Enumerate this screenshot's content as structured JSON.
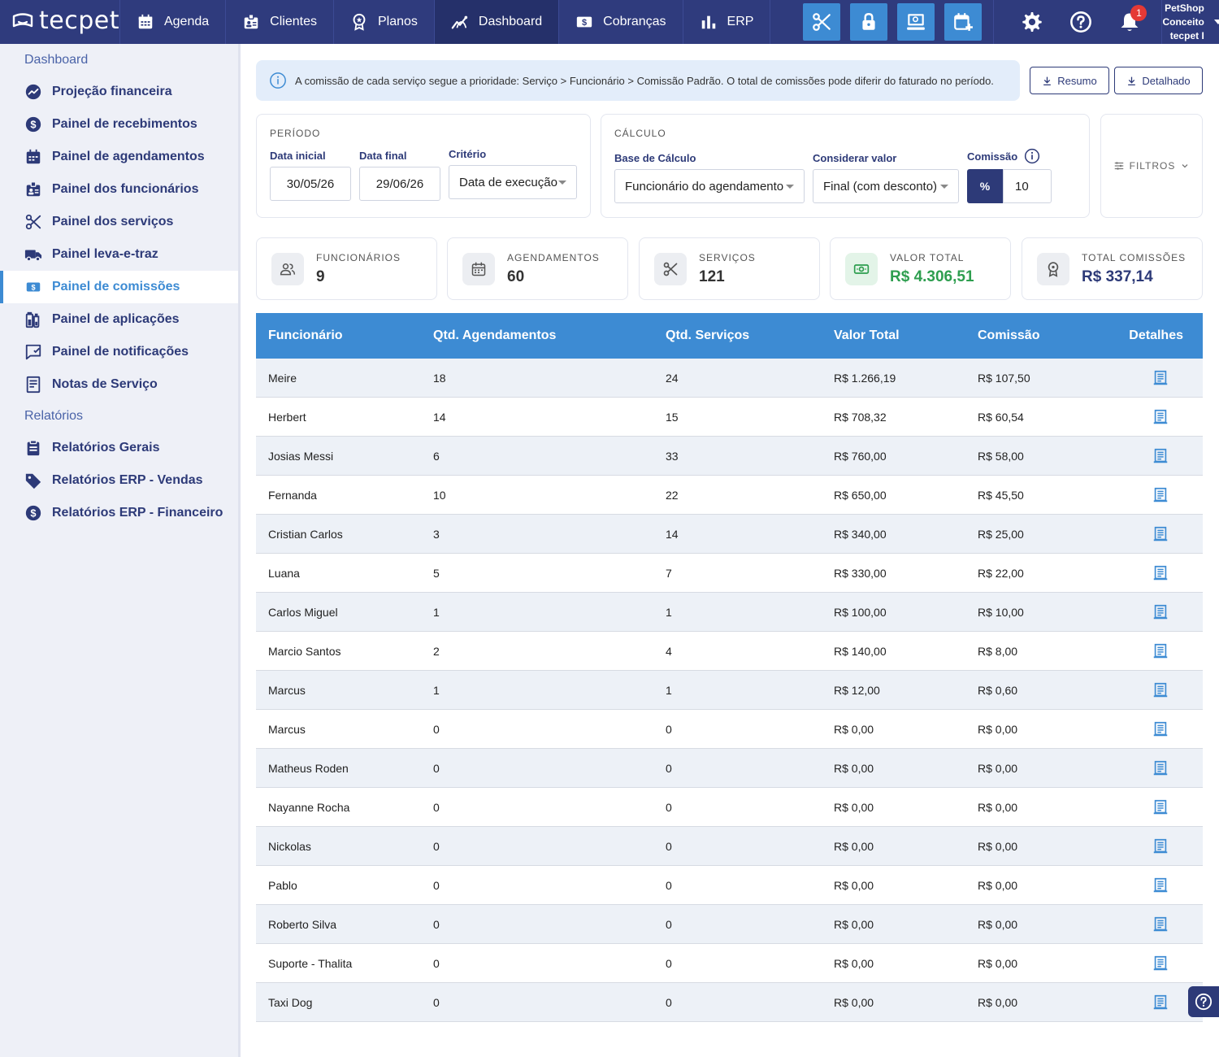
{
  "app": {
    "brand": "tecpet"
  },
  "topnav": {
    "items": [
      {
        "label": "Agenda",
        "icon": "calendar-icon"
      },
      {
        "label": "Clientes",
        "icon": "clients-icon"
      },
      {
        "label": "Planos",
        "icon": "award-icon"
      },
      {
        "label": "Dashboard",
        "icon": "chart-line-icon"
      },
      {
        "label": "Cobranças",
        "icon": "dollar-bill-icon"
      },
      {
        "label": "ERP",
        "icon": "bar-chart-icon"
      }
    ],
    "quick_actions": [
      "scissors-icon",
      "lock-icon",
      "pos-icon",
      "calendar-add-icon"
    ],
    "notification_count": "1",
    "account": {
      "name": "PetShop Conceito",
      "user": "tecpet I"
    }
  },
  "sidebar": {
    "sections": [
      {
        "title": "Dashboard",
        "items": [
          {
            "label": "Projeção financeira",
            "icon": "trend-icon"
          },
          {
            "label": "Painel de recebimentos",
            "icon": "dollar-circle-icon"
          },
          {
            "label": "Painel de agendamentos",
            "icon": "calendar-icon"
          },
          {
            "label": "Painel dos funcionários",
            "icon": "badge-icon"
          },
          {
            "label": "Painel dos serviços",
            "icon": "scissors-icon"
          },
          {
            "label": "Painel leva-e-traz",
            "icon": "truck-icon"
          },
          {
            "label": "Painel de comissões",
            "icon": "money-icon",
            "active": true
          },
          {
            "label": "Painel de aplicações",
            "icon": "flask-icon"
          },
          {
            "label": "Painel de notificações",
            "icon": "message-icon"
          },
          {
            "label": "Notas de Serviço",
            "icon": "receipt-icon"
          }
        ]
      },
      {
        "title": "Relatórios",
        "items": [
          {
            "label": "Relatórios Gerais",
            "icon": "clipboard-icon"
          },
          {
            "label": "Relatórios ERP - Vendas",
            "icon": "tag-icon"
          },
          {
            "label": "Relatórios ERP - Financeiro",
            "icon": "dollar-circle-icon"
          }
        ]
      }
    ]
  },
  "info_banner": "A comissão de cada serviço segue a prioridade: Serviço > Funcionário > Comissão Padrão. O total de comissões pode diferir do faturado no período.",
  "buttons": {
    "resumo": "Resumo",
    "detalhado": "Detalhado"
  },
  "periodo": {
    "title": "PERÍODO",
    "data_inicial_label": "Data inicial",
    "data_inicial": "30/05/26",
    "data_final_label": "Data final",
    "data_final": "29/06/26",
    "criterio_label": "Critério",
    "criterio": "Data de execução"
  },
  "calculo": {
    "title": "CÁLCULO",
    "base_label": "Base de Cálculo",
    "base": "Funcionário do agendamento",
    "considerar_label": "Considerar valor",
    "considerar": "Final (com desconto)",
    "comissao_label": "Comissão",
    "comissao_tipo": "%",
    "comissao_valor": "10"
  },
  "filtros_label": "FILTROS",
  "stats": [
    {
      "label": "FUNCIONÁRIOS",
      "value": "9",
      "icon": "users-icon",
      "color": "#333333"
    },
    {
      "label": "AGENDAMENTOS",
      "value": "60",
      "icon": "calendar-icon",
      "color": "#333333"
    },
    {
      "label": "SERVIÇOS",
      "value": "121",
      "icon": "scissors-icon",
      "color": "#333333"
    },
    {
      "label": "VALOR TOTAL",
      "value": "R$ 4.306,51",
      "icon": "cash-icon",
      "color": "#2e9e4f"
    },
    {
      "label": "TOTAL COMISSÕES",
      "value": "R$ 337,14",
      "icon": "award-icon",
      "color": "#2d3a78"
    }
  ],
  "table": {
    "headers": [
      "Funcionário",
      "Qtd. Agendamentos",
      "Qtd. Serviços",
      "Valor Total",
      "Comissão",
      "Detalhes"
    ],
    "rows": [
      [
        "Meire",
        "18",
        "24",
        "R$ 1.266,19",
        "R$ 107,50"
      ],
      [
        "Herbert",
        "14",
        "15",
        "R$ 708,32",
        "R$ 60,54"
      ],
      [
        "Josias Messi",
        "6",
        "33",
        "R$ 760,00",
        "R$ 58,00"
      ],
      [
        "Fernanda",
        "10",
        "22",
        "R$ 650,00",
        "R$ 45,50"
      ],
      [
        "Cristian Carlos",
        "3",
        "14",
        "R$ 340,00",
        "R$ 25,00"
      ],
      [
        "Luana",
        "5",
        "7",
        "R$ 330,00",
        "R$ 22,00"
      ],
      [
        "Carlos Miguel",
        "1",
        "1",
        "R$ 100,00",
        "R$ 10,00"
      ],
      [
        "Marcio Santos",
        "2",
        "4",
        "R$ 140,00",
        "R$ 8,00"
      ],
      [
        "Marcus",
        "1",
        "1",
        "R$ 12,00",
        "R$ 0,60"
      ],
      [
        "Marcus",
        "0",
        "0",
        "R$ 0,00",
        "R$ 0,00"
      ],
      [
        "Matheus Roden",
        "0",
        "0",
        "R$ 0,00",
        "R$ 0,00"
      ],
      [
        "Nayanne Rocha",
        "0",
        "0",
        "R$ 0,00",
        "R$ 0,00"
      ],
      [
        "Nickolas",
        "0",
        "0",
        "R$ 0,00",
        "R$ 0,00"
      ],
      [
        "Pablo",
        "0",
        "0",
        "R$ 0,00",
        "R$ 0,00"
      ],
      [
        "Roberto Silva",
        "0",
        "0",
        "R$ 0,00",
        "R$ 0,00"
      ],
      [
        "Suporte - Thalita",
        "0",
        "0",
        "R$ 0,00",
        "R$ 0,00"
      ],
      [
        "Taxi Dog",
        "0",
        "0",
        "R$ 0,00",
        "R$ 0,00"
      ]
    ]
  },
  "colors": {
    "nav_bg": "#2f3b7d",
    "accent": "#3d8bd3",
    "sidebar_bg": "#eef0f7",
    "green": "#2e9e4f"
  }
}
